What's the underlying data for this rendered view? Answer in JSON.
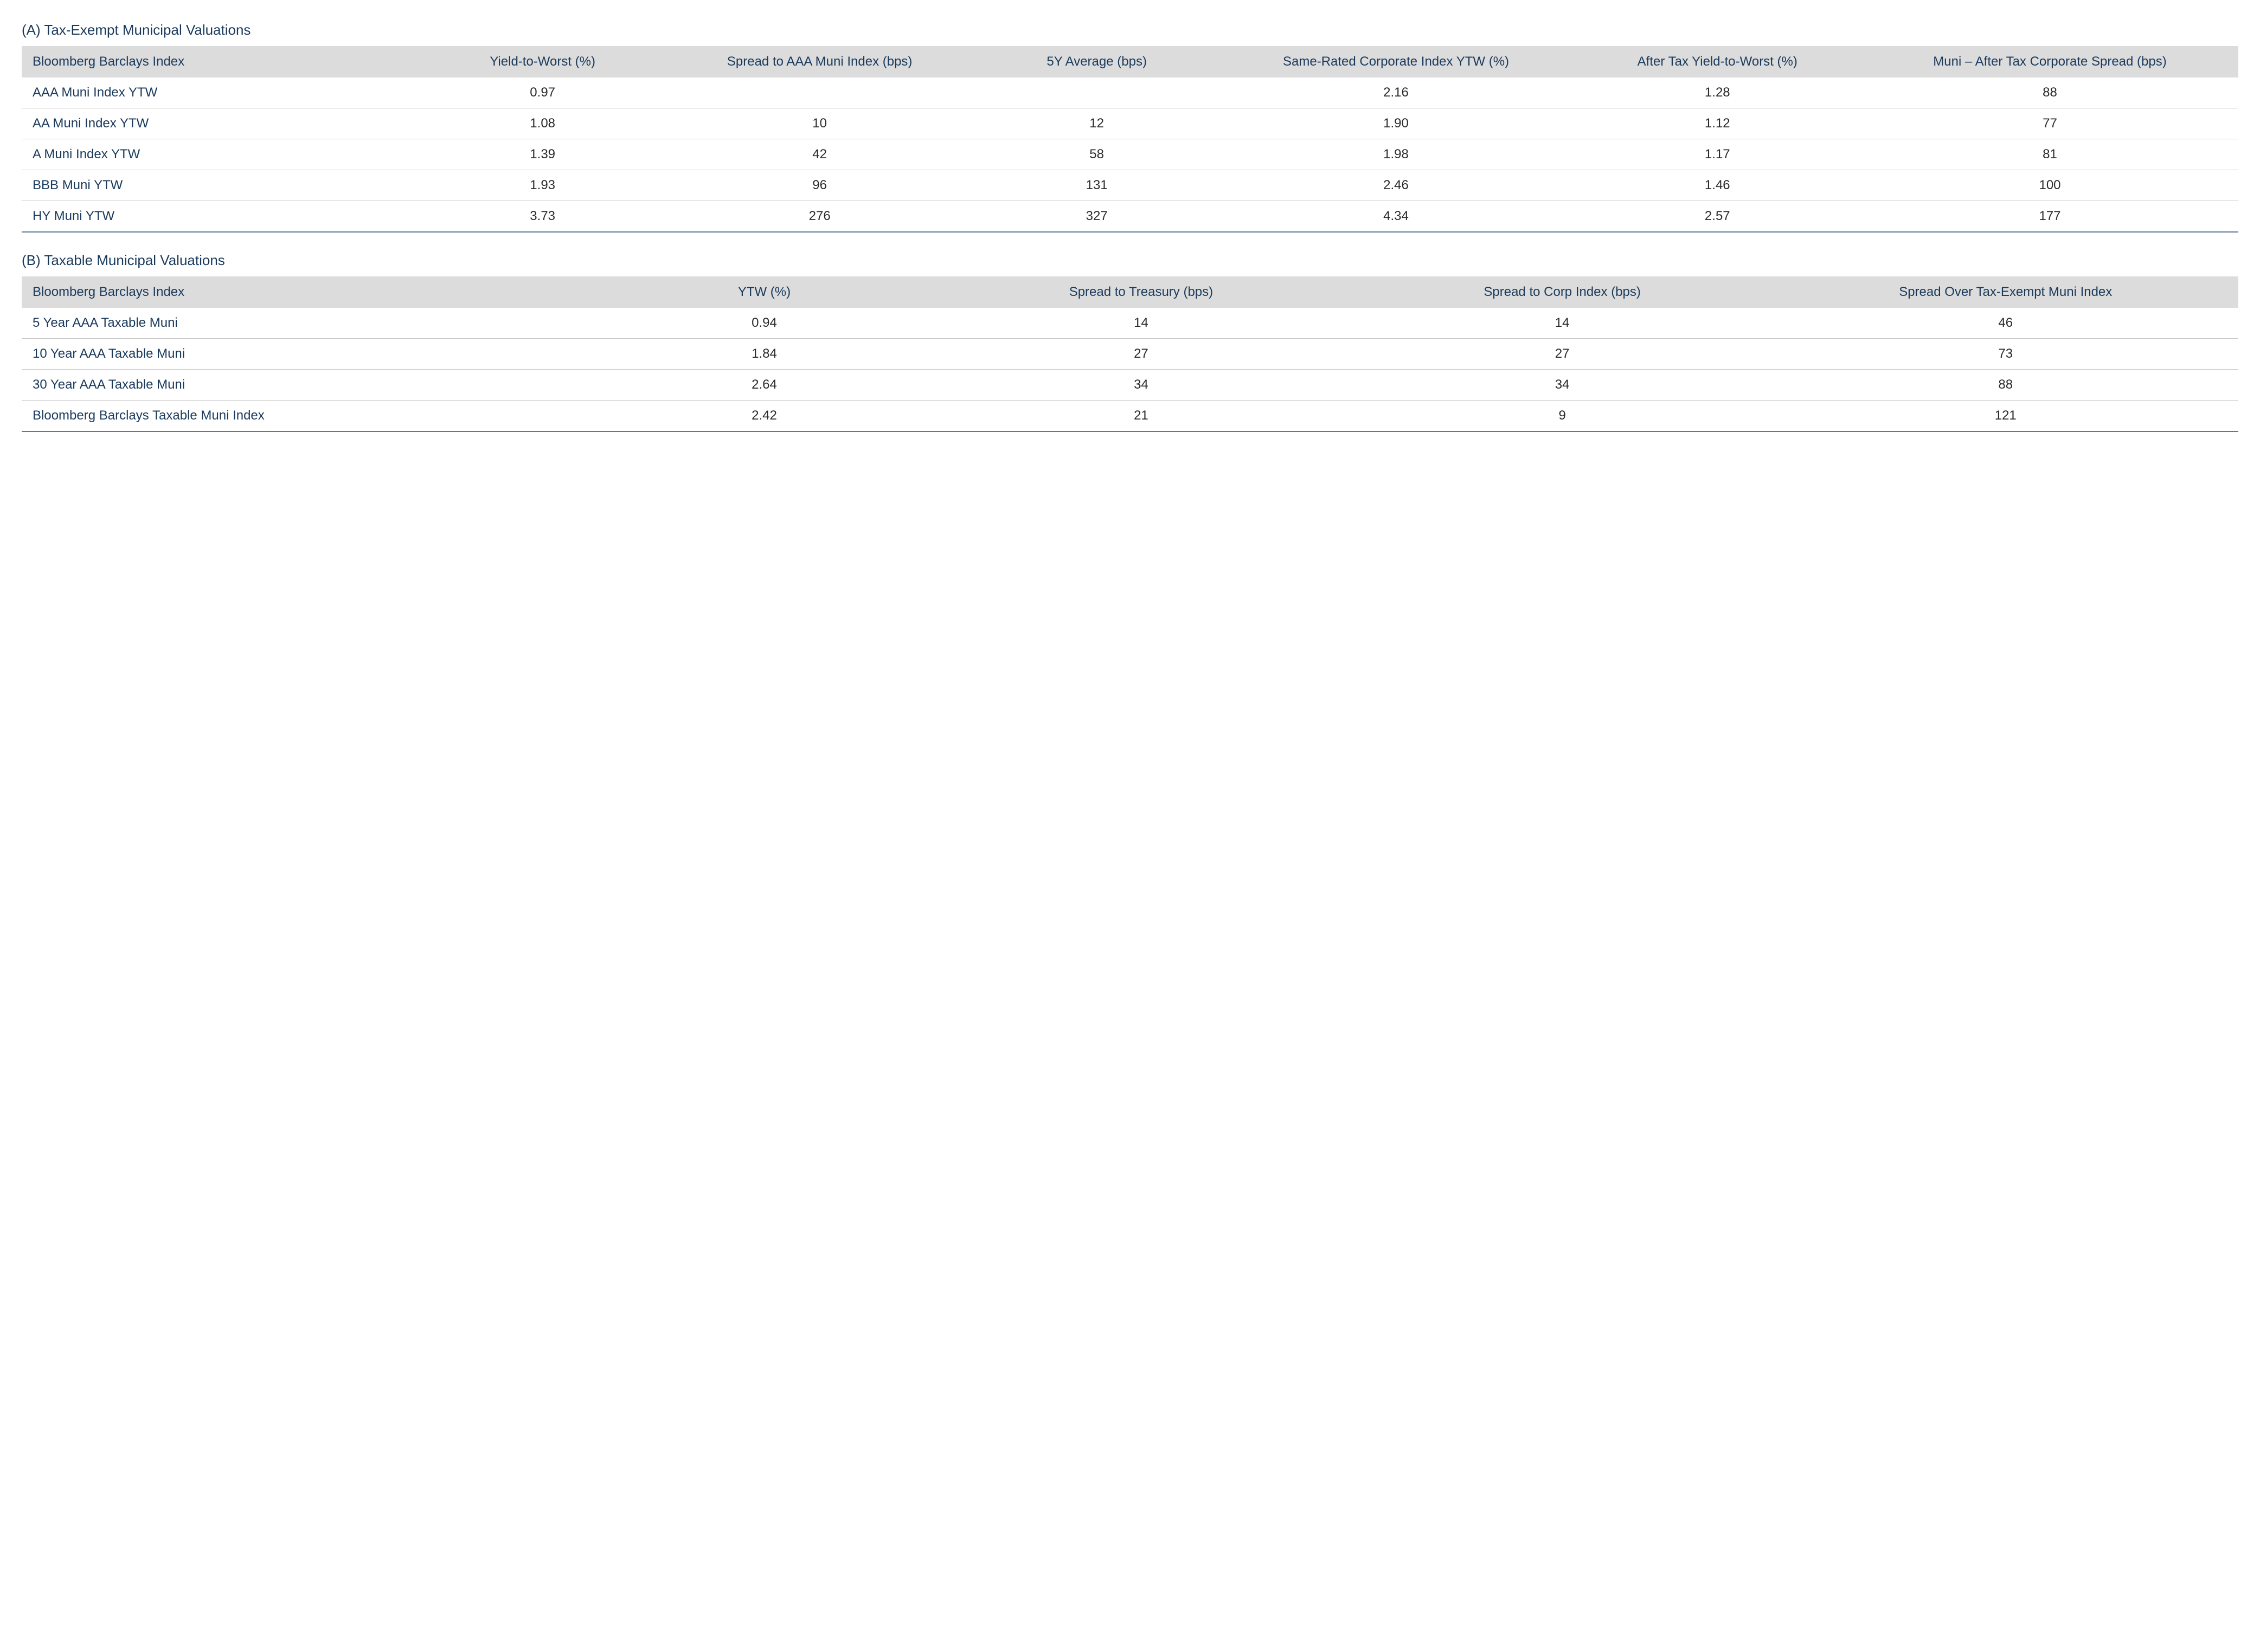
{
  "colors": {
    "header_bg": "#dcdcdc",
    "text_primary": "#1a3a5c",
    "text_data": "#2b2b2b",
    "row_border": "#c7c7c7",
    "bottom_border": "#5b7a99",
    "background": "#ffffff"
  },
  "typography": {
    "title_fontsize_pt": 20,
    "cell_fontsize_pt": 18,
    "font_family": "Myriad Pro / sans-serif",
    "header_weight": "normal"
  },
  "tableA": {
    "title": "(A) Tax-Exempt Municipal Valuations",
    "columns": [
      "Bloomberg Barclays Index",
      "Yield-to-Worst (%)",
      "Spread to AAA Muni Index (bps)",
      "5Y Average (bps)",
      "Same-Rated Corporate Index YTW (%)",
      "After Tax Yield-to-Worst (%)",
      "Muni – After Tax Corporate Spread (bps)"
    ],
    "column_align": [
      "left",
      "center",
      "center",
      "center",
      "center",
      "center",
      "center"
    ],
    "rows": [
      {
        "label": "AAA Muni Index YTW",
        "c1": "0.97",
        "c2": "",
        "c3": "",
        "c4": "2.16",
        "c5": "1.28",
        "c6": "88"
      },
      {
        "label": "AA Muni Index YTW",
        "c1": "1.08",
        "c2": "10",
        "c3": "12",
        "c4": "1.90",
        "c5": "1.12",
        "c6": "77"
      },
      {
        "label": "A Muni Index YTW",
        "c1": "1.39",
        "c2": "42",
        "c3": "58",
        "c4": "1.98",
        "c5": "1.17",
        "c6": "81"
      },
      {
        "label": "BBB Muni YTW",
        "c1": "1.93",
        "c2": "96",
        "c3": "131",
        "c4": "2.46",
        "c5": "1.46",
        "c6": "100"
      },
      {
        "label": "HY Muni YTW",
        "c1": "3.73",
        "c2": "276",
        "c3": "327",
        "c4": "4.34",
        "c5": "2.57",
        "c6": "177"
      }
    ]
  },
  "tableB": {
    "title": "(B) Taxable Municipal Valuations",
    "columns": [
      "Bloomberg Barclays Index",
      "YTW (%)",
      "Spread to Treasury (bps)",
      "Spread to Corp Index (bps)",
      "Spread Over Tax-Exempt Muni Index"
    ],
    "column_align": [
      "left",
      "center",
      "center",
      "center",
      "center"
    ],
    "rows": [
      {
        "label": "5 Year AAA Taxable Muni",
        "c1": "0.94",
        "c2": "14",
        "c3": "14",
        "c4": "46"
      },
      {
        "label": "10 Year AAA Taxable Muni",
        "c1": "1.84",
        "c2": "27",
        "c3": "27",
        "c4": "73"
      },
      {
        "label": "30 Year AAA Taxable Muni",
        "c1": "2.64",
        "c2": "34",
        "c3": "34",
        "c4": "88"
      },
      {
        "label": "Bloomberg Barclays Taxable Muni Index",
        "c1": "2.42",
        "c2": "21",
        "c3": "9",
        "c4": "121"
      }
    ]
  }
}
